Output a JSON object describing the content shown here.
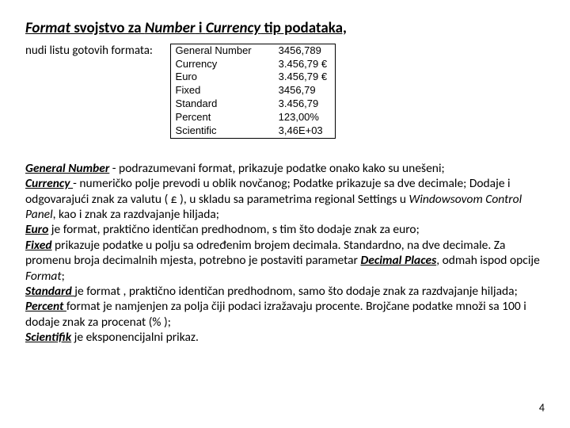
{
  "title_parts": {
    "p1": "Format",
    "p2": " svojstvo za ",
    "p3": "Number",
    "p4": " i ",
    "p5": "Currency",
    "p6": " tip podataka,"
  },
  "subtitle": "nudi listu gotovih formata:",
  "format_table": {
    "rows": [
      {
        "name": "General Number",
        "value": "3456,789"
      },
      {
        "name": "Currency",
        "value": "3.456,79 €"
      },
      {
        "name": "Euro",
        "value": "3.456,79 €"
      },
      {
        "name": "Fixed",
        "value": "3456,79"
      },
      {
        "name": "Standard",
        "value": "3.456,79"
      },
      {
        "name": "Percent",
        "value": "123,00%"
      },
      {
        "name": "Scientific",
        "value": "3,46E+03"
      }
    ]
  },
  "desc": {
    "t1": "General Number",
    "d1": " - podrazumevani format, prikazuje podatke onako kako su unešeni;",
    "t2": "Currency ",
    "d2": "- numeričko polje prevodi u oblik novčanog; Podatke prikazuje sa dve decimale; Dodaje i odgovarajući znak za valutu ( £ ), u skladu sa parametrima regional Settings u ",
    "i2": "Windowsovom Control Panel",
    "d2b": ", kao i znak za razdvajanje hiljada;",
    "t3": "Euro",
    "d3": " je format, praktično identičan predhodnom, s tim što dodaje znak za euro;",
    "t4": "Fixed",
    "d4": " prikazuje podatke u polju sa određenim brojem decimala. Standardno, na dve decimale. Za promenu broja decimalnih mjesta, potrebno je postaviti parametar ",
    "i4": "Decimal Places",
    "d4b": ", odmah ispod opcije ",
    "i4c": "Format",
    "d4d": ";",
    "t5": "Standard ",
    "d5": " je format , praktično identičan predhodnom, samo što dodaje znak za razdvajanje hiljada;",
    "t6": "Percent ",
    "d6": " format je namjenjen za polja čiji podaci izražavaju procente. Brojčane podatke množi sa 100  i dodaje znak za procenat (% );",
    "t7": "Scientifik",
    "d7": " je eksponencijalni prikaz."
  },
  "pagenum": "4"
}
